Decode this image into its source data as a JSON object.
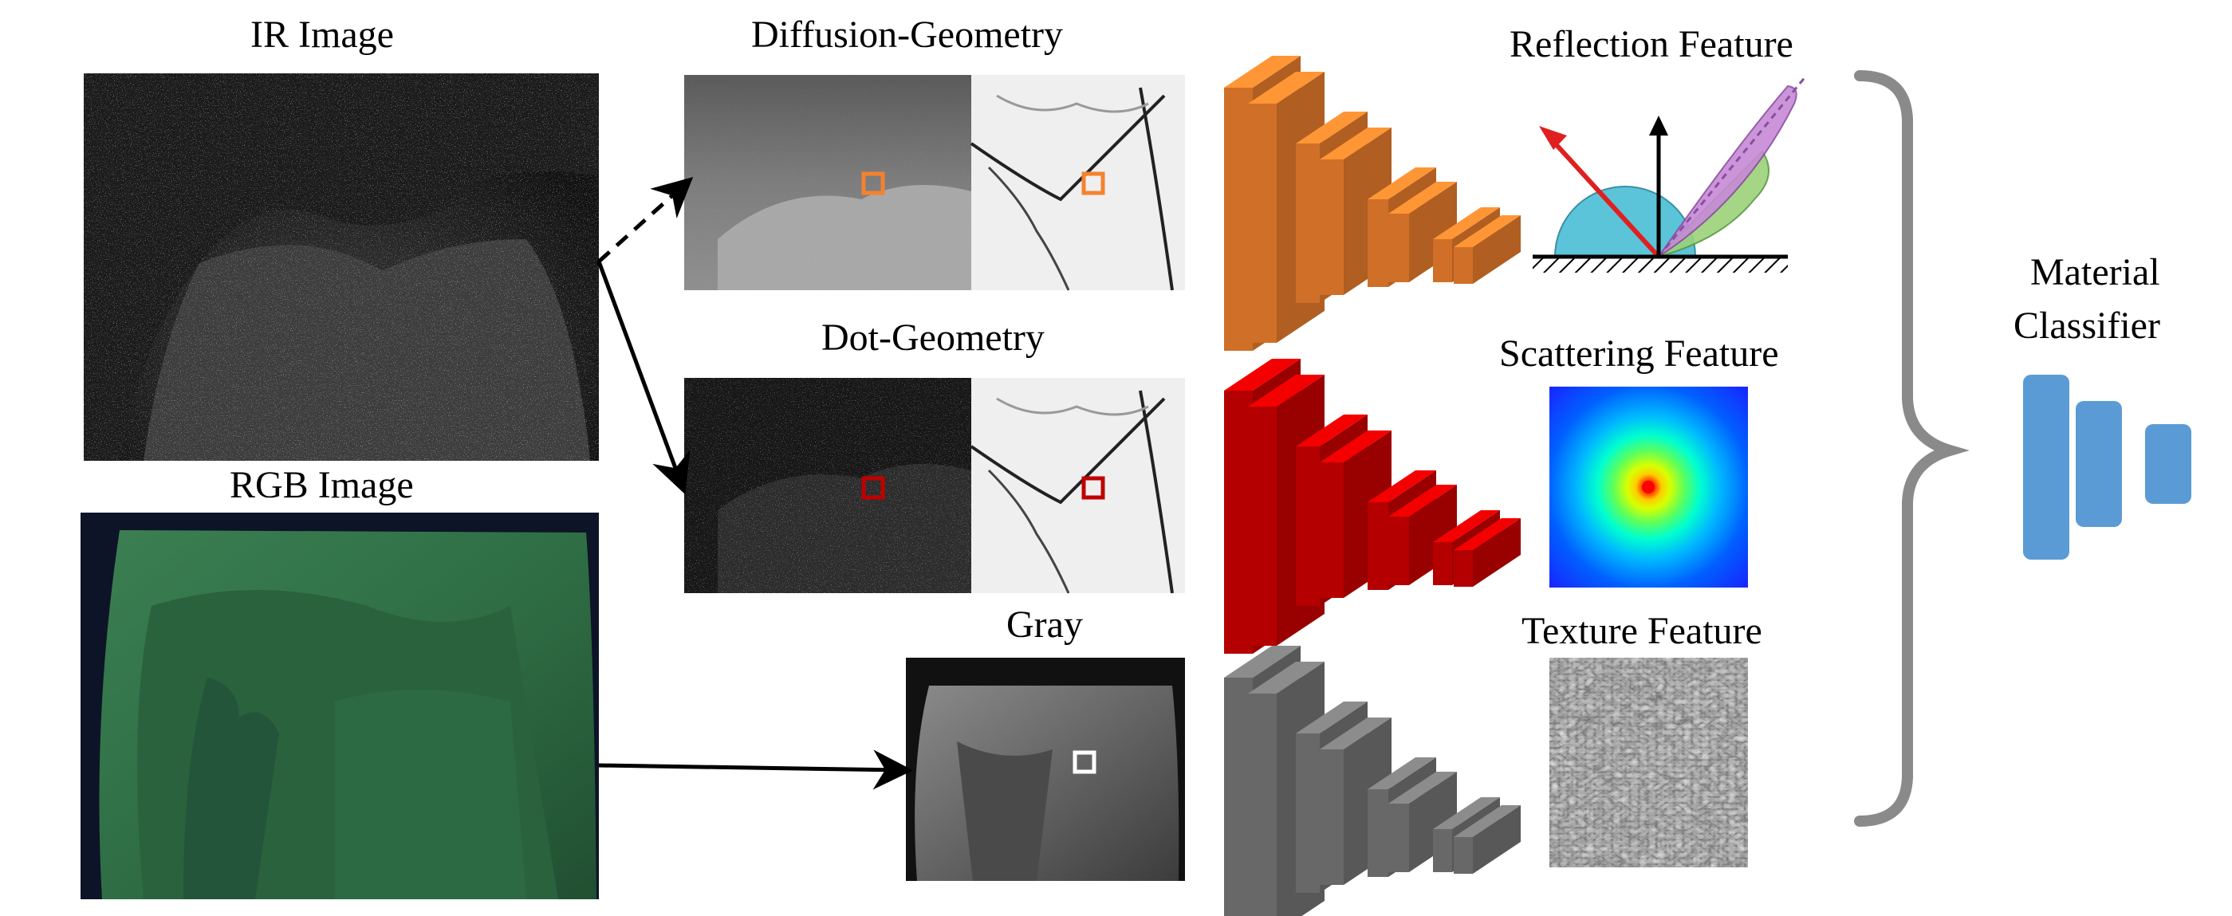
{
  "inputs": {
    "ir_image_title": "IR Image",
    "rgb_image_title": "RGB Image"
  },
  "intermediates": {
    "diffusion_geometry_title": "Diffusion-Geometry",
    "dot_geometry_title": "Dot-Geometry",
    "gray_title": "Gray"
  },
  "features": {
    "reflection_title": "Reflection Feature",
    "scattering_title": "Scattering Feature",
    "texture_title": "Texture Feature"
  },
  "classifier": {
    "line1": "Material",
    "line2": "Classifier"
  },
  "colors": {
    "reflection_cnn": "#f5822e",
    "scattering_cnn": "#d40000",
    "texture_cnn": "#7a7a7a",
    "classifier_blocks": "#5b9bd5",
    "diffusion_marker": "#f5822e",
    "dot_marker": "#c00000",
    "gray_marker": "#ffffff",
    "cloth_green": "#2f6e45"
  }
}
